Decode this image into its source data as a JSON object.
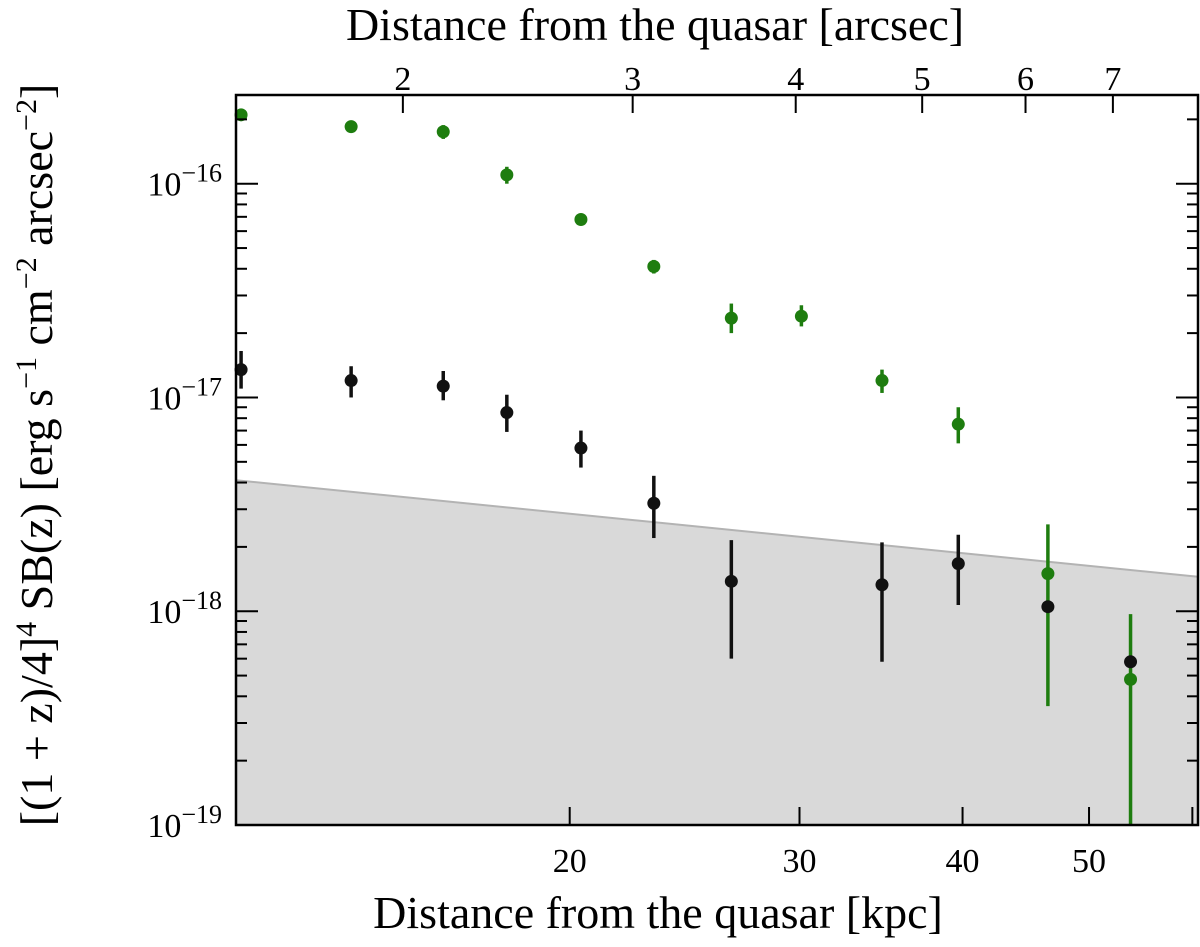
{
  "chart_data": {
    "type": "scatter",
    "title": "",
    "xlabel": "Distance from the quasar [kpc]",
    "x2label": "Distance from the quasar [arcsec]",
    "ylabel_parts": {
      "lead": "[(1 + z)/4]",
      "exp4": "4",
      "mid": " SB(z) [erg s",
      "expm1": "−1",
      "mid2": " cm",
      "expm2a": "−2",
      "mid3": " arcsec",
      "expm2b": "−2",
      "tail": "]"
    },
    "xscale": "log",
    "yscale": "log",
    "xlim": [
      11.1,
      60.6
    ],
    "ylim": [
      1e-19,
      2.6e-16
    ],
    "kpc_per_arcsec": 7.45,
    "x_ticks": [
      {
        "value": 20,
        "label": "20"
      },
      {
        "value": 30,
        "label": "30"
      },
      {
        "value": 40,
        "label": "40"
      },
      {
        "value": 50,
        "label": "50"
      }
    ],
    "x2_ticks": [
      {
        "value": 2,
        "label": "2"
      },
      {
        "value": 3,
        "label": "3"
      },
      {
        "value": 4,
        "label": "4"
      },
      {
        "value": 5,
        "label": "5"
      },
      {
        "value": 6,
        "label": "6"
      },
      {
        "value": 7,
        "label": "7"
      }
    ],
    "y_ticks": [
      {
        "value": 1e-19,
        "base": "10",
        "exp": "−19"
      },
      {
        "value": 1e-18,
        "base": "10",
        "exp": "−18"
      },
      {
        "value": 1e-17,
        "base": "10",
        "exp": "−17"
      },
      {
        "value": 1e-16,
        "base": "10",
        "exp": "−16"
      }
    ],
    "shaded_limit": {
      "name": "detection limit",
      "color": "#d9d9d9",
      "edge_color": "#b3b3b3",
      "x": [
        11.1,
        60.6
      ],
      "y": [
        4.1e-18,
        1.45e-18
      ]
    },
    "series": [
      {
        "name": "green",
        "color": "#1e7d0f",
        "points": [
          {
            "x": 11.2,
            "y": 2.1e-16,
            "yerr_low": 2e-16,
            "yerr_high": 2.2e-16
          },
          {
            "x": 13.6,
            "y": 1.85e-16,
            "yerr_low": 1.78e-16,
            "yerr_high": 1.92e-16
          },
          {
            "x": 16.0,
            "y": 1.75e-16,
            "yerr_low": 1.62e-16,
            "yerr_high": 1.88e-16
          },
          {
            "x": 17.9,
            "y": 1.1e-16,
            "yerr_low": 1e-16,
            "yerr_high": 1.2e-16
          },
          {
            "x": 20.4,
            "y": 6.8e-17,
            "yerr_low": 6.5e-17,
            "yerr_high": 7.1e-17
          },
          {
            "x": 23.2,
            "y": 4.1e-17,
            "yerr_low": 3.8e-17,
            "yerr_high": 4.4e-17
          },
          {
            "x": 26.6,
            "y": 2.35e-17,
            "yerr_low": 2e-17,
            "yerr_high": 2.75e-17
          },
          {
            "x": 30.1,
            "y": 2.4e-17,
            "yerr_low": 2.15e-17,
            "yerr_high": 2.7e-17
          },
          {
            "x": 34.7,
            "y": 1.2e-17,
            "yerr_low": 1.05e-17,
            "yerr_high": 1.35e-17
          },
          {
            "x": 39.7,
            "y": 7.5e-18,
            "yerr_low": 6.1e-18,
            "yerr_high": 9e-18
          },
          {
            "x": 46.5,
            "y": 1.5e-18,
            "yerr_low": 3.6e-19,
            "yerr_high": 2.55e-18
          },
          {
            "x": 53.8,
            "y": 4.8e-19,
            "yerr_low": 1e-19,
            "yerr_high": 9.7e-19
          }
        ]
      },
      {
        "name": "black",
        "color": "#111111",
        "points": [
          {
            "x": 11.2,
            "y": 1.35e-17,
            "yerr_low": 1.1e-17,
            "yerr_high": 1.65e-17
          },
          {
            "x": 13.6,
            "y": 1.2e-17,
            "yerr_low": 1e-17,
            "yerr_high": 1.4e-17
          },
          {
            "x": 16.0,
            "y": 1.13e-17,
            "yerr_low": 9.7e-18,
            "yerr_high": 1.33e-17
          },
          {
            "x": 17.9,
            "y": 8.5e-18,
            "yerr_low": 6.9e-18,
            "yerr_high": 1.03e-17
          },
          {
            "x": 20.4,
            "y": 5.8e-18,
            "yerr_low": 4.7e-18,
            "yerr_high": 7e-18
          },
          {
            "x": 23.2,
            "y": 3.2e-18,
            "yerr_low": 2.2e-18,
            "yerr_high": 4.3e-18
          },
          {
            "x": 26.6,
            "y": 1.38e-18,
            "yerr_low": 6e-19,
            "yerr_high": 2.15e-18
          },
          {
            "x": 34.7,
            "y": 1.33e-18,
            "yerr_low": 5.8e-19,
            "yerr_high": 2.1e-18
          },
          {
            "x": 39.7,
            "y": 1.67e-18,
            "yerr_low": 1.07e-18,
            "yerr_high": 2.28e-18
          },
          {
            "x": 46.5,
            "y": 1.05e-18,
            "yerr_low": 1.05e-18,
            "yerr_high": 1.05e-18
          },
          {
            "x": 53.8,
            "y": 5.8e-19,
            "yerr_low": 5.8e-19,
            "yerr_high": 5.8e-19
          }
        ]
      }
    ]
  }
}
